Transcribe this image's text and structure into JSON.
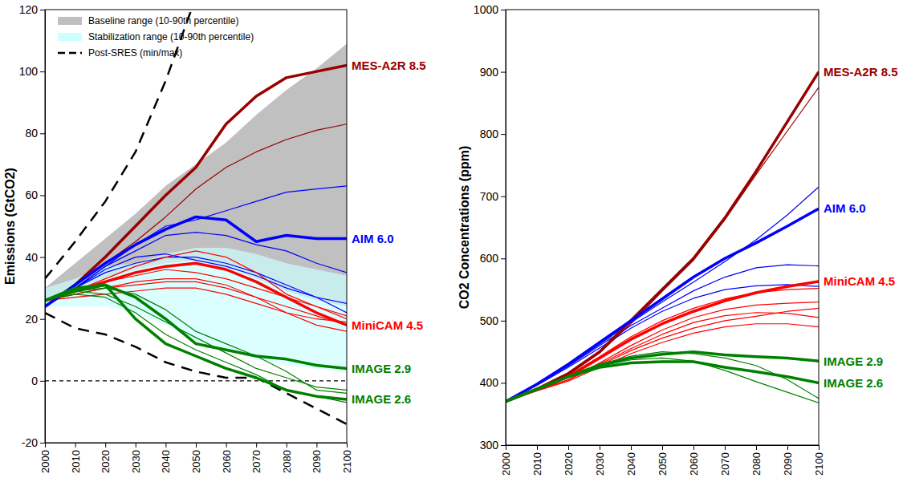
{
  "chart_data": [
    {
      "type": "line",
      "y_label": "Emissions (GtCO2)",
      "x": [
        2000,
        2010,
        2020,
        2030,
        2040,
        2050,
        2060,
        2070,
        2080,
        2090,
        2100
      ],
      "xlim": [
        2000,
        2100
      ],
      "ylim": [
        -20,
        120
      ],
      "xticks": [
        2000,
        2010,
        2020,
        2030,
        2040,
        2050,
        2060,
        2070,
        2080,
        2090,
        2100
      ],
      "yticks": [
        -20,
        0,
        20,
        40,
        60,
        80,
        100,
        120
      ],
      "grid": false,
      "legend": "upper left",
      "series": [
        {
          "name": "Baseline range (10-90th percentile)",
          "type": "area",
          "color": "#c0c0c0",
          "lower": [
            25,
            29,
            33,
            36,
            38,
            39,
            37,
            33,
            29,
            26,
            24
          ],
          "upper": [
            30,
            38,
            46,
            54,
            63,
            70,
            77,
            86,
            94,
            101,
            109
          ]
        },
        {
          "name": "Stabilization range (10-90th percentile)",
          "type": "area",
          "color": "#ccffff",
          "lower": [
            24,
            24,
            24,
            22,
            18,
            13,
            10,
            7,
            5,
            4,
            3
          ],
          "upper": [
            30,
            33,
            37,
            38,
            41,
            43,
            43,
            41,
            38,
            36,
            34
          ]
        },
        {
          "name": "Post-SRES (min/max)",
          "color": "#000000",
          "line_style": "dashed",
          "lower": [
            22,
            17,
            15,
            11,
            6,
            3,
            1,
            1,
            -4,
            -9,
            -14
          ],
          "upper": [
            33,
            45,
            58,
            74,
            97,
            124,
            null,
            null,
            null,
            null,
            null
          ]
        },
        {
          "color": "#000000",
          "line_style": "dashed",
          "values": [
            0,
            0,
            0,
            0,
            0,
            0,
            0,
            0,
            0,
            0,
            0
          ]
        },
        {
          "color": "#990000",
          "values": [
            24,
            31,
            38,
            45,
            53,
            62,
            69,
            74,
            78,
            81,
            83
          ]
        },
        {
          "color": "#0000ff",
          "values": [
            24,
            30,
            37,
            44,
            50,
            52,
            55,
            58,
            61,
            62,
            63
          ]
        },
        {
          "color": "#0000ff",
          "values": [
            24,
            30,
            37,
            42,
            47,
            48,
            47,
            44,
            42,
            38,
            35
          ]
        },
        {
          "color": "#0000ff",
          "values": [
            24,
            30,
            36,
            40,
            41,
            39,
            37,
            34,
            30,
            27,
            25
          ]
        },
        {
          "color": "#0000ff",
          "values": [
            24,
            30,
            35,
            38,
            40,
            40,
            38,
            35,
            31,
            27,
            22
          ]
        },
        {
          "color": "#ff0000",
          "values": [
            26,
            29,
            33,
            37,
            40,
            42,
            40,
            35,
            28,
            24,
            20
          ]
        },
        {
          "color": "#ff0000",
          "values": [
            26,
            29,
            32,
            34,
            36,
            35,
            33,
            30,
            27,
            24,
            21
          ]
        },
        {
          "color": "#ff0000",
          "values": [
            26,
            28,
            30,
            31,
            32,
            32,
            30,
            27,
            24,
            21,
            18
          ]
        },
        {
          "color": "#ff0000",
          "values": [
            26,
            28,
            30,
            32,
            33,
            33,
            31,
            27,
            22,
            18,
            16
          ]
        },
        {
          "color": "#ff0000",
          "values": [
            26,
            27,
            28,
            29,
            30,
            30,
            28,
            25,
            22,
            20,
            19
          ]
        },
        {
          "color": "#008000",
          "values": [
            26,
            29,
            30,
            28,
            23,
            16,
            12,
            8,
            3,
            -3,
            -4
          ]
        },
        {
          "color": "#008000",
          "values": [
            26,
            29,
            28,
            24,
            19,
            14,
            9,
            4,
            1,
            -2,
            -3
          ]
        },
        {
          "color": "#008000",
          "values": [
            26,
            28,
            27,
            22,
            15,
            10,
            6,
            2,
            -3,
            -5,
            -7
          ]
        },
        {
          "name": "MES-A2R 8.5",
          "color": "#990000",
          "values": [
            24,
            31,
            40,
            50,
            60,
            69,
            83,
            92,
            98,
            100,
            102
          ]
        },
        {
          "name": "AIM 6.0",
          "color": "#0000ff",
          "values": [
            24,
            31,
            38,
            44,
            49,
            53,
            52,
            45,
            47,
            46,
            46
          ]
        },
        {
          "name": "MiniCAM 4.5",
          "color": "#ff0000",
          "values": [
            26,
            29,
            32,
            35,
            37,
            38,
            36,
            32,
            27,
            22,
            18
          ]
        },
        {
          "name": "IMAGE 2.9",
          "color": "#008000",
          "values": [
            26,
            29,
            31,
            27,
            20,
            12,
            10,
            8,
            7,
            5,
            4
          ]
        },
        {
          "name": "IMAGE 2.6",
          "color": "#008000",
          "values": [
            26,
            30,
            31,
            20,
            12,
            8,
            4,
            1,
            -3,
            -5,
            -6
          ]
        }
      ]
    },
    {
      "type": "line",
      "y_label": "CO2 Concentrations (ppm)",
      "x": [
        2000,
        2010,
        2020,
        2030,
        2040,
        2050,
        2060,
        2070,
        2080,
        2090,
        2100
      ],
      "xlim": [
        2000,
        2100
      ],
      "ylim": [
        300,
        1000
      ],
      "xticks": [
        2000,
        2010,
        2020,
        2030,
        2040,
        2050,
        2060,
        2070,
        2080,
        2090,
        2100
      ],
      "yticks": [
        300,
        400,
        500,
        600,
        700,
        800,
        900,
        1000
      ],
      "grid": false,
      "series": [
        {
          "color": "#990000",
          "values": [
            370,
            390,
            413,
            448,
            495,
            547,
            597,
            662,
            735,
            805,
            875
          ]
        },
        {
          "color": "#0000ff",
          "values": [
            370,
            397,
            428,
            462,
            497,
            530,
            562,
            595,
            630,
            670,
            715
          ]
        },
        {
          "color": "#0000ff",
          "values": [
            370,
            397,
            427,
            460,
            492,
            520,
            548,
            570,
            585,
            590,
            588
          ]
        },
        {
          "color": "#0000ff",
          "values": [
            370,
            396,
            425,
            456,
            488,
            515,
            536,
            550,
            556,
            558,
            555
          ]
        },
        {
          "color": "#ff0000",
          "values": [
            370,
            390,
            412,
            442,
            474,
            500,
            520,
            535,
            545,
            550,
            552
          ]
        },
        {
          "color": "#ff0000",
          "values": [
            370,
            388,
            405,
            432,
            460,
            485,
            505,
            518,
            525,
            528,
            530
          ]
        },
        {
          "color": "#ff0000",
          "values": [
            370,
            388,
            405,
            430,
            455,
            478,
            497,
            508,
            513,
            512,
            505
          ]
        },
        {
          "color": "#ff0000",
          "values": [
            370,
            388,
            405,
            428,
            452,
            472,
            488,
            500,
            507,
            515,
            520
          ]
        },
        {
          "color": "#ff0000",
          "values": [
            370,
            387,
            403,
            425,
            447,
            465,
            480,
            490,
            495,
            495,
            490
          ]
        },
        {
          "color": "#008000",
          "values": [
            370,
            390,
            412,
            430,
            443,
            450,
            447,
            440,
            428,
            405,
            375
          ]
        },
        {
          "color": "#008000",
          "values": [
            370,
            389,
            410,
            427,
            437,
            440,
            435,
            420,
            402,
            385,
            368
          ]
        },
        {
          "name": "MES-A2R 8.5",
          "color": "#990000",
          "values": [
            370,
            390,
            415,
            450,
            500,
            550,
            600,
            665,
            740,
            820,
            900
          ]
        },
        {
          "name": "AIM 6.0",
          "color": "#0000ff",
          "values": [
            370,
            398,
            430,
            465,
            500,
            535,
            570,
            600,
            625,
            652,
            680
          ]
        },
        {
          "name": "MiniCAM 4.5",
          "color": "#ff0000",
          "values": [
            370,
            390,
            410,
            440,
            470,
            495,
            515,
            532,
            545,
            555,
            563
          ]
        },
        {
          "name": "IMAGE 2.9",
          "color": "#008000",
          "values": [
            370,
            390,
            410,
            428,
            440,
            446,
            450,
            445,
            442,
            440,
            435
          ]
        },
        {
          "name": "IMAGE 2.6",
          "color": "#008000",
          "values": [
            370,
            390,
            410,
            425,
            432,
            434,
            434,
            425,
            418,
            410,
            400
          ]
        }
      ]
    }
  ]
}
